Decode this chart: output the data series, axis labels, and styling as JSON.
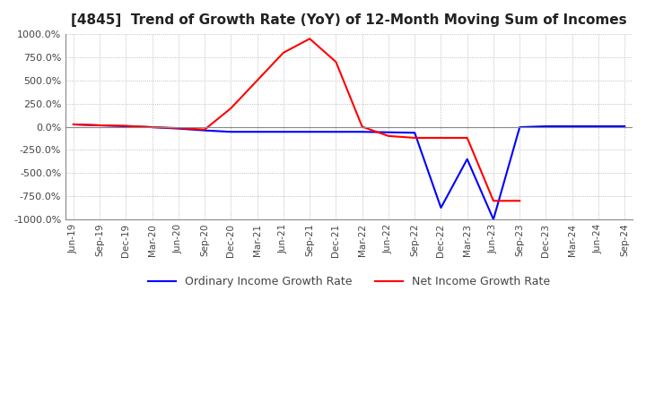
{
  "title": "[4845]  Trend of Growth Rate (YoY) of 12-Month Moving Sum of Incomes",
  "title_fontsize": 11,
  "ylim": [
    -1000,
    1000
  ],
  "yticks": [
    1000,
    750,
    500,
    250,
    0,
    -250,
    -500,
    -750,
    -1000
  ],
  "ytick_labels": [
    "1000.0%",
    "750.0%",
    "500.0%",
    "250.0%",
    "0.0%",
    "-250.0%",
    "-500.0%",
    "-750.0%",
    "-1000.0%"
  ],
  "x_labels": [
    "Jun-19",
    "Sep-19",
    "Dec-19",
    "Mar-20",
    "Jun-20",
    "Sep-20",
    "Dec-20",
    "Mar-21",
    "Jun-21",
    "Sep-21",
    "Dec-21",
    "Mar-22",
    "Jun-22",
    "Sep-22",
    "Dec-22",
    "Mar-23",
    "Jun-23",
    "Sep-23",
    "Dec-23",
    "Mar-24",
    "Jun-24",
    "Sep-24"
  ],
  "ordinary_income": [
    25,
    15,
    5,
    -5,
    -20,
    -40,
    -55,
    -55,
    -55,
    -55,
    -55,
    -55,
    -60,
    -65,
    -875,
    -350,
    -1000,
    -5,
    5,
    5,
    5,
    5
  ],
  "net_income": [
    25,
    15,
    10,
    -5,
    -15,
    -30,
    200,
    500,
    800,
    950,
    700,
    0,
    -100,
    -120,
    -120,
    -120,
    -800,
    -800,
    null,
    null,
    null,
    null
  ],
  "ordinary_color": "#0000ff",
  "net_color": "#ff0000",
  "background_color": "#ffffff",
  "grid_color": "#aaaaaa",
  "grid_style": "dotted",
  "line_width": 1.5,
  "zero_line_color": "#888888"
}
